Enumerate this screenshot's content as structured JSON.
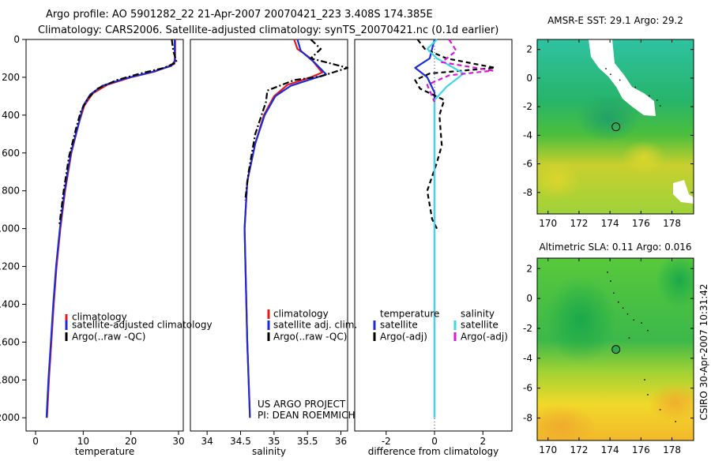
{
  "header": {
    "title_line1": "Argo profile: AO 5901282_22 21-Apr-2007 20070421_223 3.408S 174.385E",
    "title_line2": "Climatology: CARS2006. Satellite-adjusted climatology: synTS_20070421.nc (0.1d earlier)"
  },
  "colors": {
    "climatology": "#e41a1c",
    "satellite": "#1f2bd6",
    "argo": "#000000",
    "sat_salinity": "#3fd6e6",
    "argo_salinity_adj": "#d31bd3"
  },
  "chart_data": [
    {
      "id": "temperature",
      "type": "line",
      "xlabel": "temperature",
      "ylabel": "",
      "xlim": [
        -2,
        31
      ],
      "ylim": [
        2070,
        0
      ],
      "xticks": [
        "0",
        "10",
        "20",
        "30"
      ],
      "xtick_values": [
        0,
        10,
        20,
        30
      ],
      "yticks": [
        "0",
        "200",
        "400",
        "600",
        "800",
        "1000",
        "1200",
        "1400",
        "1600",
        "1800",
        "2000"
      ],
      "ytick_values": [
        0,
        200,
        400,
        600,
        800,
        1000,
        1200,
        1400,
        1600,
        1800,
        2000
      ],
      "legend": [
        {
          "label": "climatology",
          "series": "climatology"
        },
        {
          "label": "satellite-adjusted climatology",
          "series": "satellite"
        },
        {
          "label": "Argo(..raw -QC)",
          "series": "argo"
        }
      ],
      "series": [
        {
          "name": "climatology",
          "color": "#e41a1c",
          "dash": "solid",
          "points": [
            [
              29.3,
              0
            ],
            [
              29.3,
              80
            ],
            [
              29.1,
              130
            ],
            [
              25,
              170
            ],
            [
              20,
              200
            ],
            [
              15,
              240
            ],
            [
              12,
              285
            ],
            [
              10.2,
              350
            ],
            [
              9,
              450
            ],
            [
              7.5,
              600
            ],
            [
              6.2,
              800
            ],
            [
              5.2,
              1000
            ],
            [
              4.4,
              1200
            ],
            [
              3.8,
              1400
            ],
            [
              3.3,
              1600
            ],
            [
              2.8,
              1800
            ],
            [
              2.4,
              2000
            ]
          ]
        },
        {
          "name": "satellite",
          "color": "#1f2bd6",
          "dash": "solid",
          "points": [
            [
              29.2,
              0
            ],
            [
              29.2,
              60
            ],
            [
              29.3,
              110
            ],
            [
              28.5,
              140
            ],
            [
              24,
              175
            ],
            [
              19,
              205
            ],
            [
              14,
              245
            ],
            [
              11.5,
              290
            ],
            [
              10,
              350
            ],
            [
              9,
              450
            ],
            [
              7.4,
              600
            ],
            [
              6.1,
              800
            ],
            [
              5.1,
              1000
            ],
            [
              4.3,
              1200
            ],
            [
              3.7,
              1400
            ],
            [
              3.2,
              1600
            ],
            [
              2.7,
              1800
            ],
            [
              2.3,
              2000
            ]
          ]
        },
        {
          "name": "argo",
          "color": "#000000",
          "dash": "dashdot",
          "points": [
            [
              28.6,
              0
            ],
            [
              28.9,
              60
            ],
            [
              29.6,
              120
            ],
            [
              27,
              150
            ],
            [
              22,
              180
            ],
            [
              17,
              215
            ],
            [
              13,
              260
            ],
            [
              11,
              310
            ],
            [
              9.5,
              380
            ],
            [
              8.5,
              470
            ],
            [
              7,
              620
            ],
            [
              5.9,
              800
            ],
            [
              5,
              980
            ]
          ]
        }
      ]
    },
    {
      "id": "salinity",
      "type": "line",
      "xlabel": "salinity",
      "ylabel": "",
      "xlim": [
        33.75,
        36.1
      ],
      "ylim": [
        2070,
        0
      ],
      "xticks": [
        "34",
        "34.5",
        "35",
        "35.5",
        "36"
      ],
      "xtick_values": [
        34,
        34.5,
        35,
        35.5,
        36
      ],
      "legend": [
        {
          "label": "climatology",
          "series": "climatology"
        },
        {
          "label": "satellite adj. clim.",
          "series": "satellite"
        },
        {
          "label": "Argo(..raw -QC)",
          "series": "argo"
        }
      ],
      "annotation": [
        "US ARGO PROJECT",
        "PI: DEAN ROEMMICH"
      ],
      "series": [
        {
          "name": "climatology",
          "color": "#e41a1c",
          "dash": "solid",
          "points": [
            [
              35.3,
              0
            ],
            [
              35.35,
              50
            ],
            [
              35.55,
              100
            ],
            [
              35.72,
              175
            ],
            [
              35.55,
              200
            ],
            [
              35.2,
              240
            ],
            [
              35.0,
              300
            ],
            [
              34.85,
              400
            ],
            [
              34.72,
              550
            ],
            [
              34.6,
              750
            ],
            [
              34.56,
              1000
            ],
            [
              34.58,
              1300
            ],
            [
              34.6,
              1600
            ],
            [
              34.64,
              2000
            ]
          ]
        },
        {
          "name": "satellite",
          "color": "#1f2bd6",
          "dash": "solid",
          "points": [
            [
              35.35,
              0
            ],
            [
              35.4,
              60
            ],
            [
              35.6,
              120
            ],
            [
              35.78,
              185
            ],
            [
              35.6,
              205
            ],
            [
              35.25,
              245
            ],
            [
              35.02,
              300
            ],
            [
              34.86,
              400
            ],
            [
              34.72,
              550
            ],
            [
              34.6,
              750
            ],
            [
              34.56,
              1000
            ],
            [
              34.58,
              1300
            ],
            [
              34.6,
              1600
            ],
            [
              34.64,
              2000
            ]
          ]
        },
        {
          "name": "argo",
          "color": "#000000",
          "dash": "dashdot",
          "points": [
            [
              35.55,
              0
            ],
            [
              35.7,
              50
            ],
            [
              35.55,
              100
            ],
            [
              36.1,
              150
            ],
            [
              35.7,
              195
            ],
            [
              35.3,
              215
            ],
            [
              34.9,
              270
            ],
            [
              34.88,
              330
            ],
            [
              34.72,
              500
            ],
            [
              34.62,
              700
            ],
            [
              34.57,
              850
            ]
          ]
        }
      ]
    },
    {
      "id": "difference",
      "type": "line",
      "xlabel": "difference from climatology",
      "ylabel": "",
      "xlim": [
        -3.3,
        3.2
      ],
      "ylim": [
        2070,
        0
      ],
      "xticks": [
        "-2",
        "0",
        "2"
      ],
      "xtick_values": [
        -2,
        0,
        2
      ],
      "legend_groups": [
        {
          "title": "temperature",
          "items": [
            {
              "label": "satellite",
              "series": "temp_satellite"
            },
            {
              "label": "Argo(-adj)",
              "series": "temp_argo"
            }
          ]
        },
        {
          "title": "salinity",
          "items": [
            {
              "label": "satellite",
              "series": "sal_satellite"
            },
            {
              "label": "Argo(-adj)",
              "series": "sal_argo"
            }
          ]
        }
      ],
      "series": [
        {
          "name": "temp_satellite",
          "color": "#1f2bd6",
          "dash": "solid",
          "points": [
            [
              0,
              0
            ],
            [
              -0.2,
              100
            ],
            [
              -0.8,
              150
            ],
            [
              -0.3,
              200
            ],
            [
              0,
              280
            ],
            [
              0,
              2000
            ]
          ]
        },
        {
          "name": "temp_argo",
          "color": "#000000",
          "dash": "dashed",
          "points": [
            [
              -0.7,
              0
            ],
            [
              -0.4,
              50
            ],
            [
              0.5,
              100
            ],
            [
              2.5,
              150
            ],
            [
              -0.2,
              180
            ],
            [
              -0.8,
              215
            ],
            [
              -0.6,
              260
            ],
            [
              0.4,
              320
            ],
            [
              0.2,
              400
            ],
            [
              0.3,
              560
            ],
            [
              0.1,
              650
            ],
            [
              -0.3,
              800
            ],
            [
              -0.1,
              950
            ],
            [
              0.1,
              1000
            ]
          ]
        },
        {
          "name": "sal_satellite",
          "color": "#3fd6e6",
          "dash": "solid",
          "points": [
            [
              0.1,
              0
            ],
            [
              -0.3,
              50
            ],
            [
              0.1,
              100
            ],
            [
              1.2,
              180
            ],
            [
              0.5,
              250
            ],
            [
              0,
              320
            ],
            [
              0,
              2000
            ]
          ]
        },
        {
          "name": "sal_argo",
          "color": "#d31bd3",
          "dash": "dashed",
          "points": [
            [
              0.6,
              0
            ],
            [
              0.9,
              60
            ],
            [
              0.3,
              120
            ],
            [
              2.4,
              165
            ],
            [
              0.6,
              190
            ],
            [
              -0.3,
              240
            ],
            [
              -0.1,
              300
            ],
            [
              0,
              330
            ]
          ]
        }
      ]
    },
    {
      "id": "sst_map",
      "type": "heatmap",
      "title": "AMSR-E SST: 29.1 Argo: 29.2",
      "xticks": [
        "170",
        "172",
        "174",
        "176",
        "178"
      ],
      "yticks": [
        "2",
        "0",
        "-2",
        "-4",
        "-6",
        "-8"
      ],
      "xlim": [
        169.3,
        179.4
      ],
      "ylim": [
        -9.5,
        2.7
      ],
      "marker": [
        174.385,
        -3.408
      ]
    },
    {
      "id": "sla_map",
      "type": "heatmap",
      "title": "Altimetric SLA: 0.11 Argo: 0.016",
      "xticks": [
        "170",
        "172",
        "174",
        "176",
        "178"
      ],
      "yticks": [
        "2",
        "0",
        "-2",
        "-4",
        "-6",
        "-8"
      ],
      "xlim": [
        169.3,
        179.4
      ],
      "ylim": [
        -9.5,
        2.7
      ],
      "marker": [
        174.385,
        -3.408
      ]
    }
  ],
  "footer": {
    "side_label": "CSIRO 30-Apr-2007 10:31:42"
  }
}
